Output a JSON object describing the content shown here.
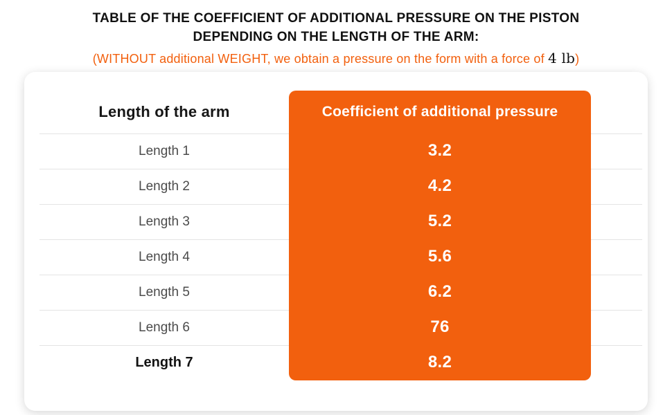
{
  "colors": {
    "accent": "#F2600E",
    "divider": "#E4E4E4",
    "row_text": "#4B4B4B",
    "title_text": "#111111",
    "value_text": "#FFFFFF"
  },
  "header": {
    "title_line1": "TABLE OF THE COEFFICIENT OF ADDITIONAL PRESSURE ON THE PISTON",
    "title_line2": "DEPENDING ON THE LENGTH OF THE ARM:",
    "subtitle_prefix": "(WITHOUT additional WEIGHT, we obtain a pressure on the form with a force of ",
    "subtitle_force": "4 lb",
    "subtitle_suffix": ")"
  },
  "table": {
    "col1_header": "Length of the arm",
    "col2_header": "Coefficient of additional pressure",
    "rows": [
      {
        "label": "Length 1",
        "value": "3.2"
      },
      {
        "label": "Length 2",
        "value": "4.2"
      },
      {
        "label": "Length 3",
        "value": "5.2"
      },
      {
        "label": "Length 4",
        "value": "5.6"
      },
      {
        "label": "Length 5",
        "value": "6.2"
      },
      {
        "label": "Length 6",
        "value": "76"
      },
      {
        "label": "Length 7",
        "value": "8.2"
      }
    ]
  },
  "chart_data": {
    "type": "table",
    "title": "TABLE OF THE COEFFICIENT OF ADDITIONAL PRESSURE ON THE PISTON DEPENDING ON THE LENGTH OF THE ARM:",
    "subtitle": "(WITHOUT additional WEIGHT, we obtain a pressure on the form with a force of 4 lb)",
    "columns": [
      "Length of the arm",
      "Coefficient of additional pressure"
    ],
    "rows": [
      [
        "Length 1",
        3.2
      ],
      [
        "Length 2",
        4.2
      ],
      [
        "Length 3",
        5.2
      ],
      [
        "Length 4",
        5.6
      ],
      [
        "Length 5",
        6.2
      ],
      [
        "Length 6",
        76
      ],
      [
        "Length 7",
        8.2
      ]
    ]
  }
}
